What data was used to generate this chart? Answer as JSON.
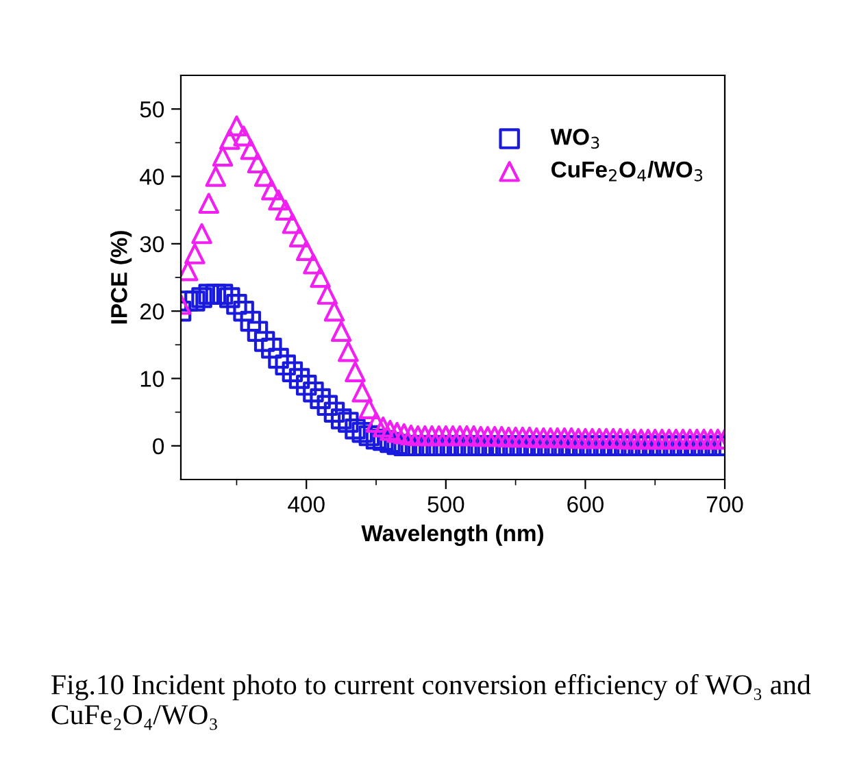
{
  "chart_data": {
    "type": "scatter",
    "xlabel": "Wavelength (nm)",
    "ylabel": "IPCE (%)",
    "x": [
      310,
      315,
      320,
      325,
      330,
      335,
      340,
      345,
      350,
      355,
      360,
      365,
      370,
      375,
      380,
      385,
      390,
      395,
      400,
      405,
      410,
      415,
      420,
      425,
      430,
      435,
      440,
      445,
      450,
      455,
      460,
      465,
      470,
      475,
      480,
      485,
      490,
      495,
      500,
      505,
      510,
      515,
      520,
      525,
      530,
      535,
      540,
      545,
      550,
      555,
      560,
      565,
      570,
      575,
      580,
      585,
      590,
      595,
      600,
      605,
      610,
      615,
      620,
      625,
      630,
      635,
      640,
      645,
      650,
      655,
      660,
      665,
      670,
      675,
      680,
      685,
      690,
      695,
      700
    ],
    "series": [
      {
        "name": "WO$_{3}$",
        "color": "#1a1adc",
        "marker": "square",
        "values": [
          20,
          21.5,
          21.5,
          22,
          22.5,
          22.5,
          22.5,
          22,
          21,
          20,
          18.5,
          17,
          15.5,
          14.5,
          13,
          12,
          11,
          10,
          9,
          8,
          7,
          6,
          5,
          4,
          3.5,
          2.5,
          2,
          1.5,
          1,
          0.8,
          0.5,
          0.2,
          0,
          0,
          0,
          0,
          0,
          0,
          0,
          0,
          0,
          0,
          0,
          0,
          0,
          0,
          0,
          0,
          0,
          0,
          0,
          0,
          0,
          0,
          0,
          0,
          0,
          0,
          0,
          0,
          0,
          0,
          0,
          0,
          0,
          0,
          0,
          0,
          0,
          0,
          0,
          0,
          0,
          0,
          0,
          0,
          0,
          0,
          0
        ]
      },
      {
        "name": "CuFe$_{2}$O$_{4}$/WO$_{3}$",
        "color": "#f020f0",
        "marker": "triangle",
        "values": [
          21,
          26,
          28.5,
          31.5,
          36,
          40,
          43,
          45.5,
          47.5,
          46,
          44,
          42,
          40,
          38,
          36.5,
          35,
          33,
          31,
          29,
          27,
          25,
          22.5,
          20,
          17,
          14,
          11,
          8,
          5.5,
          3.5,
          2.8,
          2.3,
          2,
          1.8,
          1.6,
          1.5,
          1.5,
          1.5,
          1.5,
          1.5,
          1.5,
          1.5,
          1.5,
          1.5,
          1.4,
          1.4,
          1.4,
          1.4,
          1.3,
          1.3,
          1.3,
          1.3,
          1.2,
          1.2,
          1.2,
          1.2,
          1.2,
          1.2,
          1.1,
          1.1,
          1.1,
          1.1,
          1.1,
          1.1,
          1.1,
          1,
          1,
          1,
          1,
          1,
          1,
          1,
          1,
          1,
          1,
          1,
          1,
          1,
          1,
          1
        ]
      }
    ],
    "xlim": [
      310,
      700
    ],
    "xticks": [
      400,
      500,
      600,
      700
    ],
    "ylim": [
      -5,
      55
    ],
    "yticks": [
      0,
      10,
      20,
      30,
      40,
      50
    ],
    "grid": false,
    "legend": "top right",
    "annotations": [
      "Fig.10 Incident photo to current conversion efficiency of WO₃ and CuFe₂O₄/WO₃"
    ]
  }
}
